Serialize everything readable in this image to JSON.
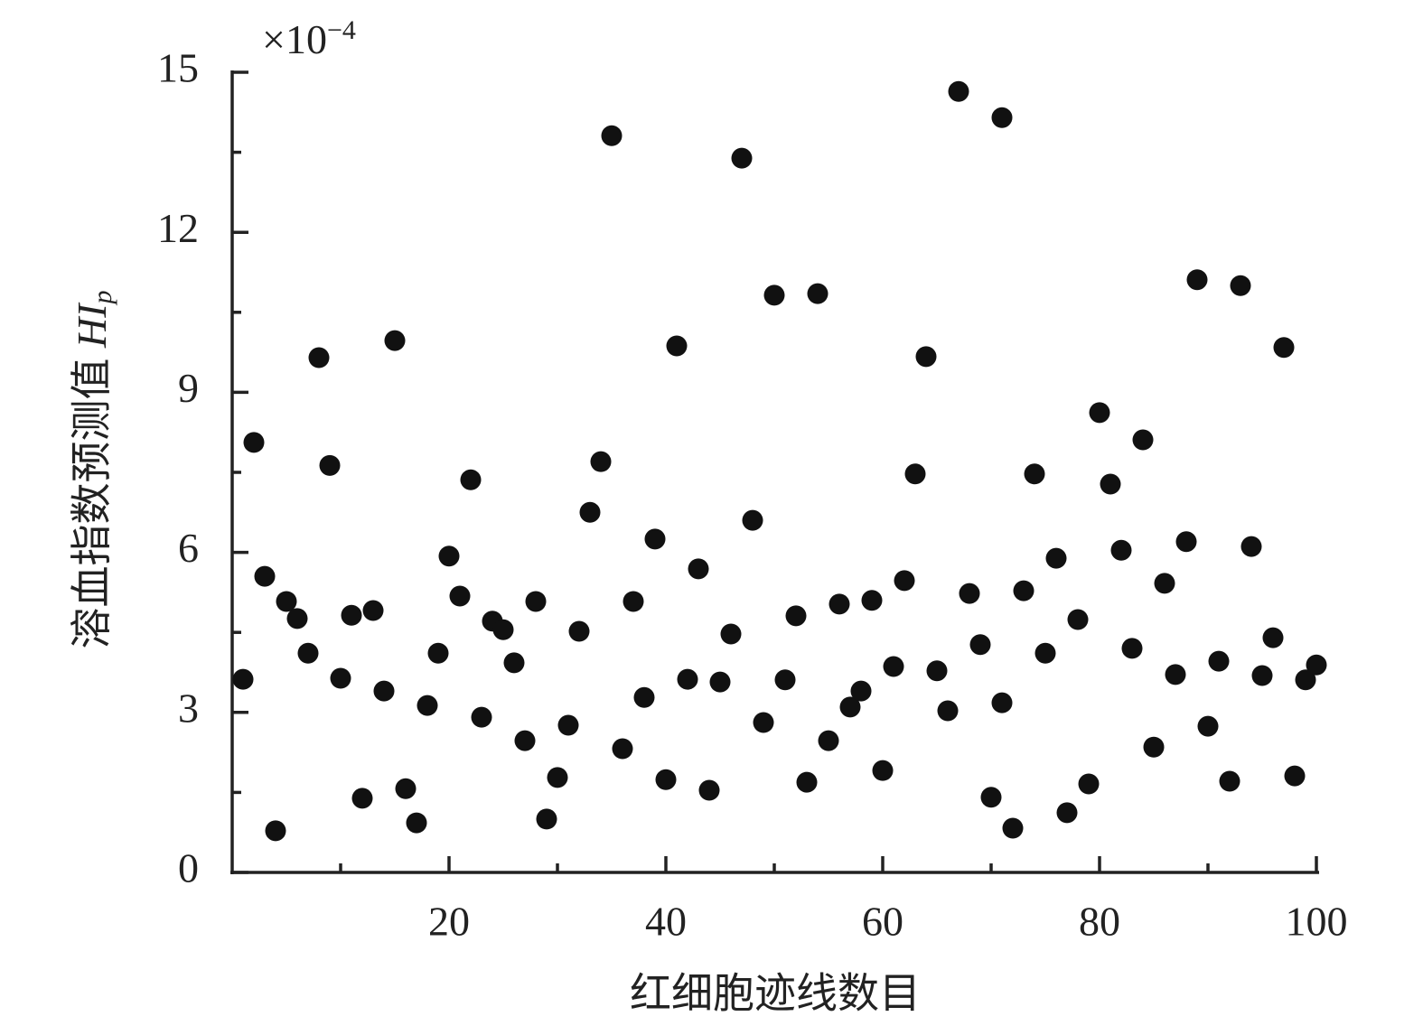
{
  "chart_data": {
    "type": "scatter",
    "multiplier": "×10",
    "multiplier_exp": "−4",
    "xlabel": "红细胞迹线数目",
    "ylabel": "溶血指数预测值 ",
    "ylabel_var": "HI",
    "ylabel_sub": "p",
    "color": "#111111",
    "x": [
      1,
      2,
      3,
      4,
      5,
      6,
      7,
      8,
      9,
      10,
      11,
      12,
      13,
      14,
      15,
      16,
      17,
      18,
      19,
      20,
      21,
      22,
      23,
      24,
      25,
      26,
      27,
      28,
      29,
      30,
      31,
      32,
      33,
      34,
      35,
      36,
      37,
      38,
      39,
      40,
      41,
      42,
      43,
      44,
      45,
      46,
      47,
      48,
      49,
      50,
      51,
      52,
      53,
      54,
      55,
      56,
      57,
      58,
      59,
      60,
      61,
      62,
      63,
      64,
      65,
      66,
      67,
      68,
      69,
      70,
      71,
      71,
      72,
      73,
      74,
      75,
      76,
      77,
      78,
      79,
      80,
      81,
      82,
      83,
      84,
      85,
      86,
      87,
      88,
      89,
      90,
      91,
      92,
      93,
      94,
      95,
      96,
      97,
      98,
      99,
      100
    ],
    "values": [
      3.62,
      8.06,
      5.55,
      0.78,
      5.08,
      4.76,
      4.11,
      9.65,
      7.63,
      3.64,
      4.82,
      1.39,
      4.91,
      3.4,
      9.97,
      1.57,
      0.93,
      3.13,
      4.11,
      5.93,
      5.18,
      7.36,
      2.91,
      4.71,
      4.55,
      3.93,
      2.47,
      5.08,
      1.0,
      1.78,
      2.76,
      4.52,
      6.75,
      7.7,
      13.81,
      2.32,
      5.08,
      3.28,
      6.25,
      1.74,
      9.87,
      3.62,
      5.69,
      1.54,
      3.57,
      4.47,
      13.39,
      6.6,
      2.81,
      10.82,
      3.61,
      4.81,
      1.69,
      10.85,
      2.47,
      5.03,
      3.1,
      3.4,
      5.1,
      1.91,
      3.86,
      5.47,
      7.47,
      9.67,
      3.78,
      3.03,
      14.64,
      5.23,
      4.27,
      1.41,
      14.15,
      3.18,
      0.83,
      5.28,
      7.47,
      4.11,
      5.89,
      1.12,
      4.74,
      1.66,
      8.62,
      7.28,
      6.04,
      4.2,
      8.11,
      2.35,
      5.42,
      3.71,
      6.2,
      11.11,
      2.74,
      3.96,
      1.71,
      11.0,
      6.11,
      3.69,
      4.4,
      9.84,
      1.81,
      3.61,
      3.89
    ],
    "xlim": [
      0,
      100
    ],
    "xticks": [
      20,
      40,
      60,
      80,
      100
    ],
    "xminor": [
      10,
      30,
      50,
      70,
      90
    ],
    "ylim": [
      0,
      15
    ],
    "yticks": [
      0,
      3,
      6,
      9,
      12,
      15
    ],
    "yminor": [
      1.5,
      4.5,
      7.5,
      10.5,
      13.5
    ]
  }
}
